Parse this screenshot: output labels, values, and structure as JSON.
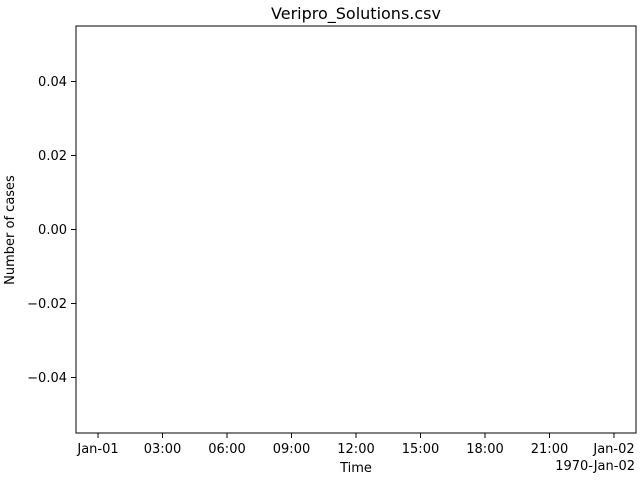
{
  "chart_data": {
    "type": "line",
    "title": "Veripro_Solutions.csv",
    "xlabel": "Time",
    "ylabel": "Number of cases",
    "x_offset_label": "1970-Jan-02",
    "x_ticks": [
      "Jan-01",
      "03:00",
      "06:00",
      "09:00",
      "12:00",
      "15:00",
      "18:00",
      "21:00",
      "Jan-02"
    ],
    "y_ticks": [
      "0.04",
      "0.02",
      "0.00",
      "−0.02",
      "−0.04"
    ],
    "y_tick_values": [
      0.04,
      0.02,
      0.0,
      -0.02,
      -0.04
    ],
    "ylim": [
      -0.055,
      0.055
    ],
    "x_range": [
      "1970-01-01 00:00",
      "1970-01-02 00:00"
    ],
    "grid": false,
    "series": []
  }
}
